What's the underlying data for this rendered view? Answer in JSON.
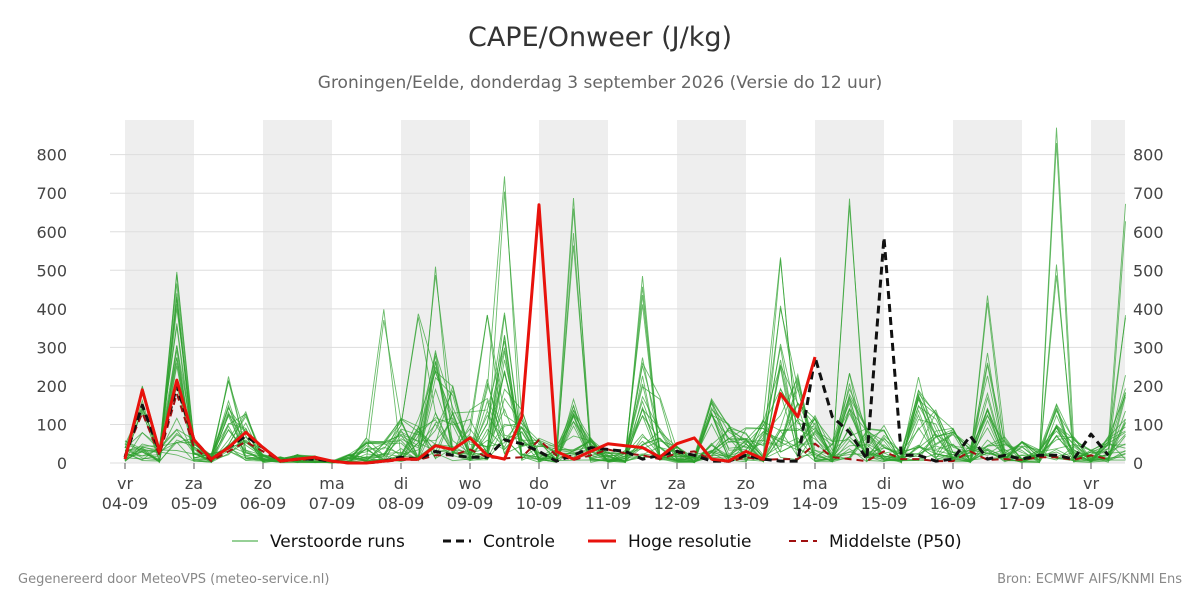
{
  "colors": {
    "ensemble": "#2ca02c",
    "control": "#111111",
    "hires": "#e8120c",
    "median": "#a01010",
    "night_band": "#eeeeee",
    "grid": "#dddddd"
  },
  "chart_data": {
    "type": "line",
    "title": "CAPE/Onweer (J/kg)",
    "subtitle": "Groningen/Eelde, donderdag  3 september 2026 (Versie do 12 uur)",
    "ylim": [
      0,
      890
    ],
    "xlim": [
      0,
      14.5
    ],
    "y_ticks": [
      0,
      100,
      200,
      300,
      400,
      500,
      600,
      700,
      800
    ],
    "x_ticks": [
      {
        "day": "vr",
        "date": "04-09"
      },
      {
        "day": "za",
        "date": "05-09"
      },
      {
        "day": "zo",
        "date": "06-09"
      },
      {
        "day": "ma",
        "date": "07-09"
      },
      {
        "day": "di",
        "date": "08-09"
      },
      {
        "day": "wo",
        "date": "09-09"
      },
      {
        "day": "do",
        "date": "10-09"
      },
      {
        "day": "vr",
        "date": "11-09"
      },
      {
        "day": "za",
        "date": "12-09"
      },
      {
        "day": "zo",
        "date": "13-09"
      },
      {
        "day": "ma",
        "date": "14-09"
      },
      {
        "day": "di",
        "date": "15-09"
      },
      {
        "day": "wo",
        "date": "16-09"
      },
      {
        "day": "do",
        "date": "17-09"
      },
      {
        "day": "vr",
        "date": "18-09"
      }
    ],
    "night_bands": [
      [
        0,
        1
      ],
      [
        2,
        3
      ],
      [
        4,
        5
      ],
      [
        6,
        7
      ],
      [
        8,
        9
      ],
      [
        10,
        11
      ],
      [
        12,
        13
      ],
      [
        14,
        14.5
      ]
    ],
    "grid": true,
    "legend": "bottom",
    "x_step": 0.25,
    "control": [
      15,
      150,
      30,
      200,
      60,
      10,
      40,
      70,
      40,
      5,
      10,
      10,
      5,
      0,
      0,
      5,
      15,
      10,
      30,
      20,
      15,
      15,
      60,
      50,
      30,
      5,
      20,
      40,
      35,
      30,
      10,
      20,
      30,
      20,
      5,
      5,
      20,
      10,
      5,
      5,
      275,
      120,
      80,
      10,
      585,
      20,
      20,
      5,
      10,
      70,
      10,
      20,
      10,
      20,
      20,
      10,
      75,
      20,
      20,
      10,
      5,
      20,
      10
    ],
    "hires": [
      10,
      190,
      30,
      215,
      60,
      10,
      40,
      80,
      40,
      5,
      10,
      15,
      5,
      0,
      0,
      5,
      10,
      10,
      45,
      35,
      65,
      20,
      10,
      120,
      670,
      30,
      10,
      30,
      50,
      45,
      40,
      15,
      50,
      65,
      10,
      5,
      30,
      10,
      180,
      120,
      275,
      0,
      0,
      0,
      0,
      0,
      0,
      0,
      0,
      0,
      0,
      0,
      0,
      0,
      0,
      0,
      0,
      0,
      0,
      0,
      0,
      0,
      0
    ],
    "median": [
      20,
      130,
      20,
      180,
      40,
      5,
      30,
      55,
      30,
      5,
      8,
      10,
      5,
      0,
      0,
      3,
      8,
      8,
      20,
      20,
      35,
      15,
      12,
      15,
      60,
      20,
      8,
      20,
      35,
      25,
      20,
      10,
      25,
      30,
      8,
      3,
      15,
      8,
      10,
      10,
      50,
      15,
      10,
      5,
      30,
      10,
      10,
      5,
      5,
      30,
      8,
      10,
      8,
      15,
      15,
      8,
      20,
      10,
      10,
      8,
      5,
      10,
      10
    ],
    "hires_points": 41,
    "series": [
      {
        "name": "Verstoorde runs"
      },
      {
        "name": "Controle"
      },
      {
        "name": "Hoge resolutie"
      },
      {
        "name": "Middelste (P50)"
      }
    ],
    "ensemble_count": 30,
    "ensemble_peaks": [
      [
        0,
        50
      ],
      [
        0.25,
        180
      ],
      [
        0.5,
        40
      ],
      [
        0.75,
        450
      ],
      [
        1,
        60
      ],
      [
        1.25,
        30
      ],
      [
        1.5,
        200
      ],
      [
        1.75,
        120
      ],
      [
        2,
        20
      ],
      [
        2.25,
        15
      ],
      [
        2.5,
        20
      ],
      [
        3,
        5
      ],
      [
        3.5,
        60
      ],
      [
        3.75,
        50
      ],
      [
        4,
        110
      ],
      [
        4.25,
        100
      ],
      [
        4.5,
        260
      ],
      [
        4.75,
        180
      ],
      [
        5,
        120
      ],
      [
        5.25,
        200
      ],
      [
        5.5,
        350
      ],
      [
        5.75,
        120
      ],
      [
        6,
        60
      ],
      [
        6.25,
        40
      ],
      [
        6.5,
        160
      ],
      [
        6.75,
        60
      ],
      [
        7,
        30
      ],
      [
        7.25,
        30
      ],
      [
        7.5,
        250
      ],
      [
        7.75,
        80
      ],
      [
        8,
        40
      ],
      [
        8.25,
        20
      ],
      [
        8.5,
        150
      ],
      [
        8.75,
        90
      ],
      [
        9,
        80
      ],
      [
        9.25,
        100
      ],
      [
        9.5,
        300
      ],
      [
        9.75,
        200
      ],
      [
        10,
        120
      ],
      [
        10.25,
        50
      ],
      [
        10.5,
        220
      ],
      [
        10.75,
        80
      ],
      [
        11,
        90
      ],
      [
        11.25,
        30
      ],
      [
        11.5,
        200
      ],
      [
        11.75,
        120
      ],
      [
        12,
        80
      ],
      [
        12.25,
        40
      ],
      [
        12.5,
        250
      ],
      [
        12.75,
        60
      ],
      [
        13,
        50
      ],
      [
        13.25,
        30
      ],
      [
        13.5,
        150
      ],
      [
        13.75,
        60
      ],
      [
        14,
        30
      ],
      [
        14.25,
        60
      ],
      [
        14.5,
        200
      ]
    ],
    "ensemble_spikes": [
      [
        0.75,
        497
      ],
      [
        4.5,
        520
      ],
      [
        5.5,
        765
      ],
      [
        6.5,
        702
      ],
      [
        6.5,
        600
      ],
      [
        7.5,
        490
      ],
      [
        7.5,
        440
      ],
      [
        9.5,
        565
      ],
      [
        9.5,
        430
      ],
      [
        10.5,
        695
      ],
      [
        12.5,
        445
      ],
      [
        13.5,
        890
      ],
      [
        13.5,
        515
      ],
      [
        14.5,
        680
      ],
      [
        14.5,
        385
      ],
      [
        4.25,
        405
      ],
      [
        5.25,
        400
      ],
      [
        7.75,
        180
      ],
      [
        3.75,
        400
      ],
      [
        11.5,
        180
      ]
    ]
  },
  "legend": {
    "ensemble": "Verstoorde runs",
    "control": "Controle",
    "hires": "Hoge resolutie",
    "median": "Middelste (P50)"
  },
  "footer": {
    "left": "Gegenereerd door MeteoVPS (meteo-service.nl)",
    "right": "Bron: ECMWF AIFS/KNMI Ens"
  }
}
